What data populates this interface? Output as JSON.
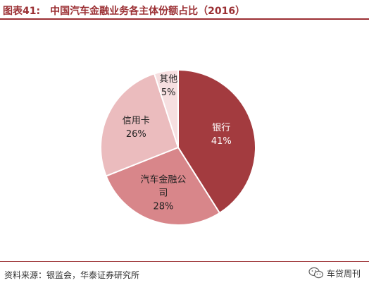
{
  "header": {
    "figure_label": "图表41:",
    "figure_title": "中国汽车金融业务各主体份额占比（2016）"
  },
  "chart_data": {
    "type": "pie",
    "title": "中国汽车金融业务各主体份额占比（2016）",
    "slices": [
      {
        "label": "银行",
        "value": 41,
        "display": "41%",
        "color": "#a33b3f",
        "text_color": "#ffffff"
      },
      {
        "label": "汽车金融公司",
        "label_lines": [
          "汽车金融公",
          "司"
        ],
        "value": 28,
        "display": "28%",
        "color": "#d8868a",
        "text_color": "#222222"
      },
      {
        "label": "信用卡",
        "value": 26,
        "display": "26%",
        "color": "#ebbcbe",
        "text_color": "#222222"
      },
      {
        "label": "其他",
        "value": 5,
        "display": "5%",
        "color": "#f6dfe0",
        "text_color": "#222222"
      }
    ]
  },
  "footer": {
    "source": "资料来源：银监会，华泰证券研究所",
    "watermark_text": "车贷周刊",
    "watermark_icon": "wechat-icon"
  }
}
